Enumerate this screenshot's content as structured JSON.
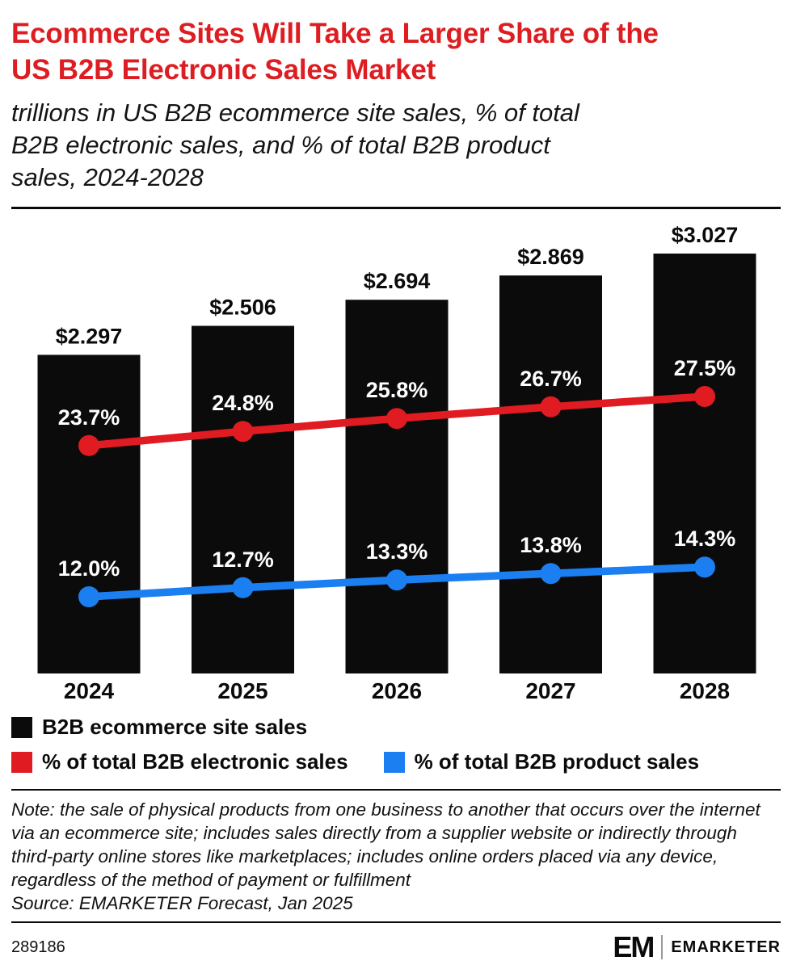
{
  "header": {
    "title_lines": [
      "Ecommerce Sites Will Take a Larger Share of the",
      "US B2B Electronic Sales Market"
    ],
    "subtitle_lines": [
      "trillions in US B2B ecommerce site sales, % of total",
      "B2B electronic sales, and % of total B2B product",
      "sales, 2024-2028"
    ]
  },
  "chart_data": {
    "type": "bar",
    "subtype": "bar+line combo",
    "categories": [
      "2024",
      "2025",
      "2026",
      "2027",
      "2028"
    ],
    "series": [
      {
        "name": "B2B ecommerce site sales",
        "kind": "bar",
        "unit": "trillions USD",
        "color": "#0b0b0b",
        "values": [
          2.297,
          2.506,
          2.694,
          2.869,
          3.027
        ],
        "labels": [
          "$2.297",
          "$2.506",
          "$2.694",
          "$2.869",
          "$3.027"
        ]
      },
      {
        "name": "% of total B2B electronic sales",
        "kind": "line",
        "unit": "%",
        "color": "#e01b22",
        "values": [
          23.7,
          24.8,
          25.8,
          26.7,
          27.5
        ],
        "labels": [
          "23.7%",
          "24.8%",
          "25.8%",
          "26.7%",
          "27.5%"
        ]
      },
      {
        "name": "% of total B2B product sales",
        "kind": "line",
        "unit": "%",
        "color": "#1b7ff2",
        "values": [
          12.0,
          12.7,
          13.3,
          13.8,
          14.3
        ],
        "labels": [
          "12.0%",
          "12.7%",
          "13.3%",
          "13.8%",
          "14.3%"
        ]
      }
    ],
    "bar_ylim": [
      0,
      3.35
    ],
    "grid": false,
    "legend_position": "bottom"
  },
  "legend": [
    {
      "label": "B2B ecommerce site sales",
      "color": "#0b0b0b"
    },
    {
      "label": "% of total B2B electronic sales",
      "color": "#e01b22"
    },
    {
      "label": "% of total B2B product sales",
      "color": "#1b7ff2"
    }
  ],
  "note": {
    "text": "Note: the sale of physical products from one business to another that occurs over the internet via an ecommerce site; includes sales directly from a supplier website or indirectly through third-party online stores like marketplaces; includes online orders placed via any device, regardless of the method of payment or fulfillment",
    "source": "Source: EMARKETER Forecast, Jan 2025"
  },
  "footer": {
    "chart_id": "289186",
    "logo_monogram": "EM",
    "brand": "EMARKETER"
  }
}
